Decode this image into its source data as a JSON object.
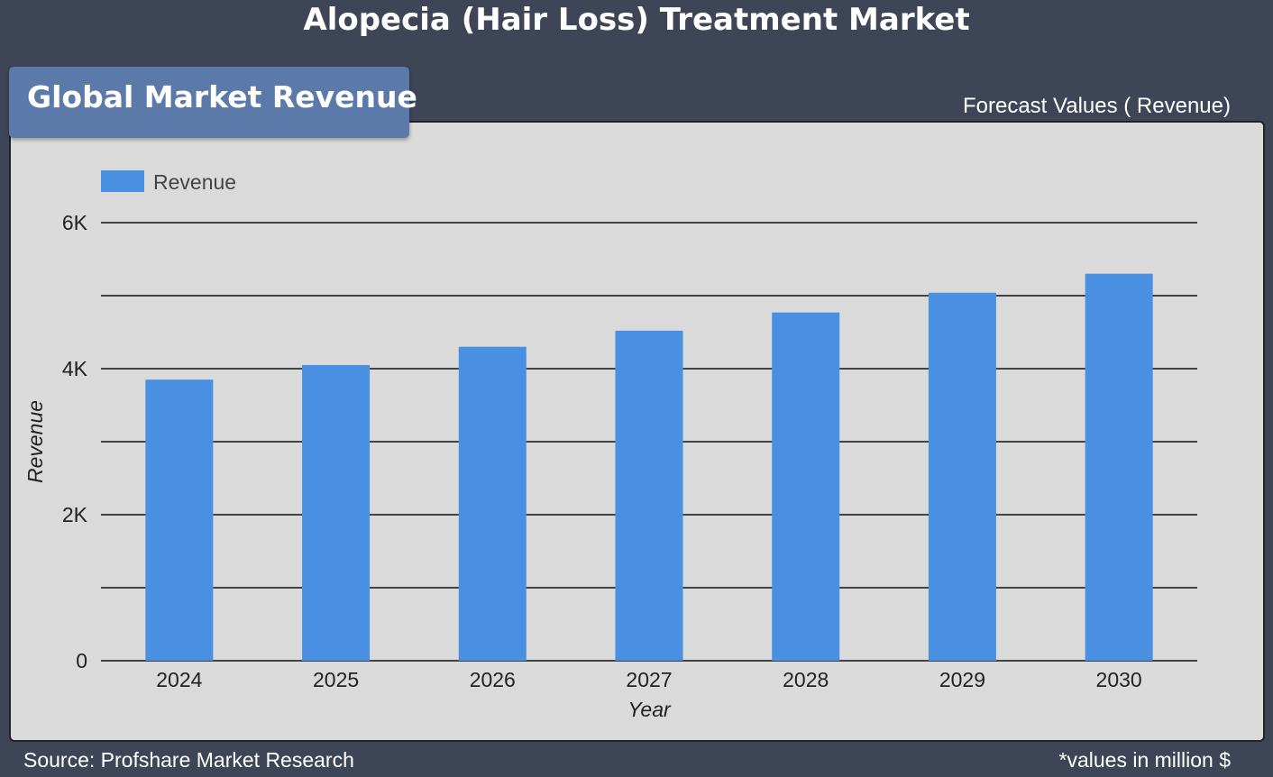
{
  "header": {
    "title": "Alopecia (Hair Loss) Treatment Market"
  },
  "tab": {
    "label": "Global Market Revenue"
  },
  "subtitle": "Forecast Values ( Revenue)",
  "footer": {
    "source": "Source: Profshare Market Research",
    "units": "*values in million $"
  },
  "colors": {
    "background": "#3e4556",
    "panel": "#dadada",
    "tab": "#5b7aa9",
    "bar": "#4a90e2"
  },
  "chart_data": {
    "type": "bar",
    "categories": [
      "2024",
      "2025",
      "2026",
      "2027",
      "2028",
      "2029",
      "2030"
    ],
    "series": [
      {
        "name": "Revenue",
        "values": [
          3850,
          4050,
          4300,
          4520,
          4770,
          5040,
          5300
        ]
      }
    ],
    "xlabel": "Year",
    "ylabel": "Revenue",
    "ylim": [
      0,
      6000
    ],
    "yticks": [
      {
        "value": 0,
        "label": "0"
      },
      {
        "value": 2000,
        "label": "2K"
      },
      {
        "value": 4000,
        "label": "4K"
      },
      {
        "value": 6000,
        "label": "6K"
      }
    ],
    "gridlines": [
      0,
      1000,
      2000,
      3000,
      4000,
      5000,
      6000
    ],
    "grid": true,
    "legend_position": "top-left"
  }
}
